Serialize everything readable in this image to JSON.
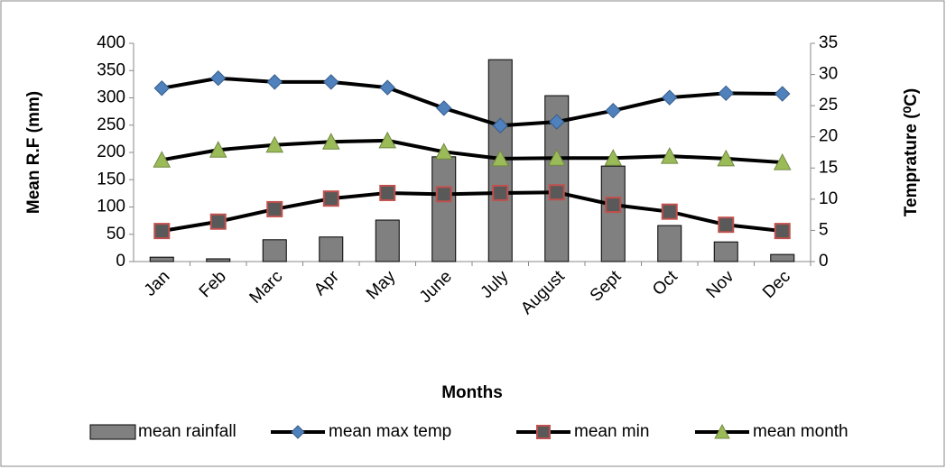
{
  "chart_data": {
    "type": "bar_line",
    "x_label": "Months",
    "y_label": "Mean  R.F (mm)",
    "y2_label": "Temprature (⁰C)",
    "categories": [
      "Jan",
      "Feb",
      "Marc",
      "Apr",
      "May",
      "June",
      "July",
      "August",
      "Sept",
      "Oct",
      "Nov",
      "Dec"
    ],
    "ylim": [
      0,
      400
    ],
    "yticks": [
      0,
      50,
      100,
      150,
      200,
      250,
      300,
      350,
      400
    ],
    "y2lim": [
      0,
      35
    ],
    "y2ticks": [
      0,
      5,
      10,
      15,
      20,
      25,
      30,
      35
    ],
    "grid": false,
    "legend": "bottom",
    "series": [
      {
        "name": "mean rainfall",
        "kind": "bar",
        "color": "#808080",
        "values": [
          8,
          5,
          40,
          45,
          76,
          192,
          370,
          304,
          175,
          66,
          36,
          13
        ]
      },
      {
        "name": "mean max temp",
        "kind": "line",
        "axis": "y2",
        "marker": "diamond",
        "color": "#4f81bd",
        "values": [
          27.8,
          29.4,
          28.8,
          28.8,
          27.9,
          24.6,
          21.8,
          22.4,
          24.2,
          26.3,
          27.0,
          26.9
        ]
      },
      {
        "name": "mean min",
        "kind": "line",
        "axis": "y2",
        "marker": "square",
        "color": "#c0504d",
        "values": [
          4.9,
          6.4,
          8.4,
          10.1,
          11.0,
          10.8,
          11.0,
          11.1,
          9.1,
          8.0,
          5.9,
          4.9
        ]
      },
      {
        "name": "mean month",
        "kind": "line",
        "axis": "y2",
        "marker": "triangle",
        "color": "#9bbb59",
        "values": [
          16.3,
          17.9,
          18.7,
          19.2,
          19.4,
          17.6,
          16.5,
          16.6,
          16.6,
          16.9,
          16.5,
          15.9
        ]
      }
    ]
  }
}
